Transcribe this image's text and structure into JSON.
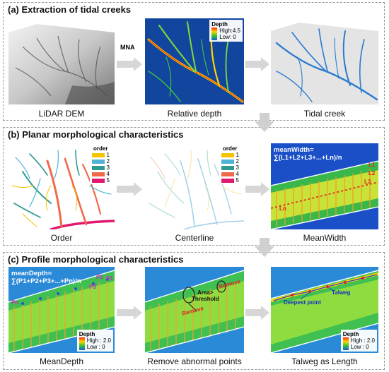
{
  "sections": [
    {
      "title": "(a) Extraction of tidal creeks"
    },
    {
      "title": "(b) Planar morphological characteristics"
    },
    {
      "title": "(c) Profile morphological characteristics"
    }
  ],
  "captions": {
    "a1": "LiDAR DEM",
    "a2": "Relative depth",
    "a3": "Tidal creek",
    "b1": "Order",
    "b2": "Centerline",
    "b3": "MeanWidth",
    "c1": "MeanDepth",
    "c2": "Remove abnormal points",
    "c3": "Talweg as Length"
  },
  "arrow_label": "MNA",
  "depth_legend_a": {
    "title": "Depth",
    "high": "High:4.5",
    "low": "Low: 0"
  },
  "depth_legend_c": {
    "title": "Depth",
    "high": "High : 2.0",
    "low": "Low : 0"
  },
  "order_legend": {
    "title": "order",
    "items": [
      "1",
      "2",
      "3",
      "4",
      "5"
    ],
    "colors": [
      "#f5c400",
      "#4fb3d6",
      "#2f9b8f",
      "#f06a4a",
      "#e0186e"
    ]
  },
  "mean_width": {
    "line1": "meanWidth=",
    "line2": "∑(L1+L2+L3+...+Ln)/n",
    "labels": [
      "L1",
      "L2",
      "L3",
      "Ln"
    ]
  },
  "mean_depth": {
    "line1": "meanDepth=",
    "line2": "∑(P1+P2+P3+...+Pn)/n",
    "labels": [
      "P2",
      "P1",
      "P3",
      "Pn"
    ]
  },
  "remove_annos": {
    "area": "Area>",
    "threshold": "Threshold",
    "remove1": "Remove",
    "remove2": "Remove"
  },
  "talweg_annos": {
    "talweg": "Talweg",
    "deepest": "Deepest point"
  },
  "colors": {
    "depth_bg": "#1a4fc8",
    "creek_blue": "#2a7bd0",
    "remove_red": "#e02020",
    "label_magenta": "#c030c0"
  }
}
